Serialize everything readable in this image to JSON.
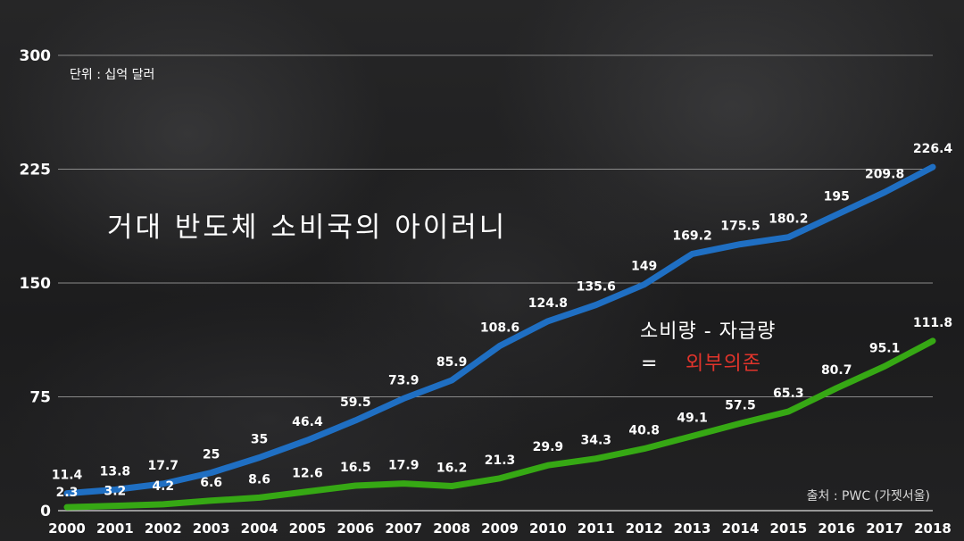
{
  "chart_data": {
    "type": "line",
    "title": "거대 반도체 소비국의 아이러니",
    "unit_label": "단위 : 십억 달러",
    "x": [
      "2000",
      "2001",
      "2002",
      "2003",
      "2004",
      "2005",
      "2006",
      "2007",
      "2008",
      "2009",
      "2010",
      "2011",
      "2012",
      "2013",
      "2014",
      "2015",
      "2016",
      "2017",
      "2018"
    ],
    "ylim": [
      0,
      300
    ],
    "yticks": [
      0,
      75,
      150,
      225,
      300
    ],
    "grid": true,
    "series": [
      {
        "color": "#1f6fc3",
        "values": [
          11.4,
          13.8,
          17.7,
          25,
          35,
          46.4,
          59.5,
          73.9,
          85.9,
          108.6,
          124.8,
          135.6,
          149,
          169.2,
          175.5,
          180.2,
          195,
          209.8,
          226.4
        ],
        "labels": [
          "11.4",
          "13.8",
          "17.7",
          "25",
          "35",
          "46.4",
          "59.5",
          "73.9",
          "85.9",
          "108.6",
          "124.8",
          "135.6",
          "149",
          "169.2",
          "175.5",
          "180.2",
          "195",
          "209.8",
          "226.4"
        ]
      },
      {
        "color": "#36a814",
        "values": [
          2.3,
          3.2,
          4.2,
          6.6,
          8.6,
          12.6,
          16.5,
          17.9,
          16.2,
          21.3,
          29.9,
          34.3,
          40.8,
          49.1,
          57.5,
          65.3,
          80.7,
          95.1,
          111.8
        ],
        "labels": [
          "2.3",
          "3.2",
          "4.2",
          "6.6",
          "8.6",
          "12.6",
          "16.5",
          "17.9",
          "16.2",
          "21.3",
          "29.9",
          "34.3",
          "40.8",
          "49.1",
          "57.5",
          "65.3",
          "80.7",
          "95.1",
          "111.8"
        ]
      }
    ],
    "annotation": {
      "line1": "소비량 - 자급량",
      "eq": "=",
      "highlight": "외부의존",
      "highlight_color": "#e0342b"
    },
    "source": "출처 : PWC (가젯서울)"
  }
}
